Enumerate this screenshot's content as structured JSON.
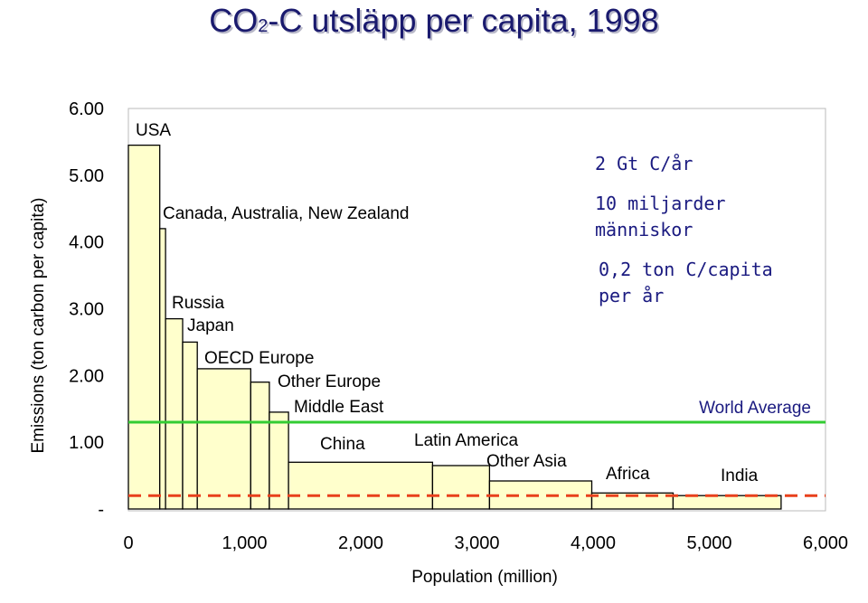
{
  "title": {
    "prefix": "CO",
    "sub": "2",
    "rest": "-C utsläpp per capita, 1998"
  },
  "colors": {
    "bar_fill": "#ffffcc",
    "bar_stroke": "#000000",
    "world_avg": "#33cc33",
    "target": "#e8401c",
    "annotation": "#1a1a80",
    "title": "#1a1a6e"
  },
  "chart_data": {
    "type": "bar",
    "bar_layout": "variable-width",
    "xlabel": "Population (million)",
    "ylabel": "Emissions (ton carbon per capita)",
    "xlim": [
      0,
      6000
    ],
    "ylim": [
      0,
      6
    ],
    "x_ticks": [
      "0",
      "1,000",
      "2,000",
      "3,000",
      "4,000",
      "5,000",
      "6,000"
    ],
    "y_ticks": [
      "-",
      "1.00",
      "2.00",
      "3.00",
      "4.00",
      "5.00",
      "6.00"
    ],
    "grid": false,
    "bars": [
      {
        "label": "USA",
        "population": 270,
        "emissions": 5.45
      },
      {
        "label": "Canada, Australia, New Zealand",
        "population": 50,
        "emissions": 4.2
      },
      {
        "label": "Russia",
        "population": 147,
        "emissions": 2.85
      },
      {
        "label": "Japan",
        "population": 126,
        "emissions": 2.5
      },
      {
        "label": "OECD Europe",
        "population": 460,
        "emissions": 2.1
      },
      {
        "label": "Other Europe",
        "population": 160,
        "emissions": 1.9
      },
      {
        "label": "Middle East",
        "population": 165,
        "emissions": 1.45
      },
      {
        "label": "China",
        "population": 1240,
        "emissions": 0.7
      },
      {
        "label": "Latin America",
        "population": 490,
        "emissions": 0.65
      },
      {
        "label": "Other Asia",
        "population": 880,
        "emissions": 0.42
      },
      {
        "label": "Africa",
        "population": 700,
        "emissions": 0.24
      },
      {
        "label": "India",
        "population": 930,
        "emissions": 0.2
      }
    ],
    "reference_lines": [
      {
        "label": "World Average",
        "value": 1.3,
        "style": "solid"
      },
      {
        "label": "",
        "value": 0.2,
        "style": "dashed"
      }
    ],
    "annotations": [
      "2 Gt C/år",
      "10 miljarder människor",
      "0,2 ton C/capita per år"
    ]
  }
}
